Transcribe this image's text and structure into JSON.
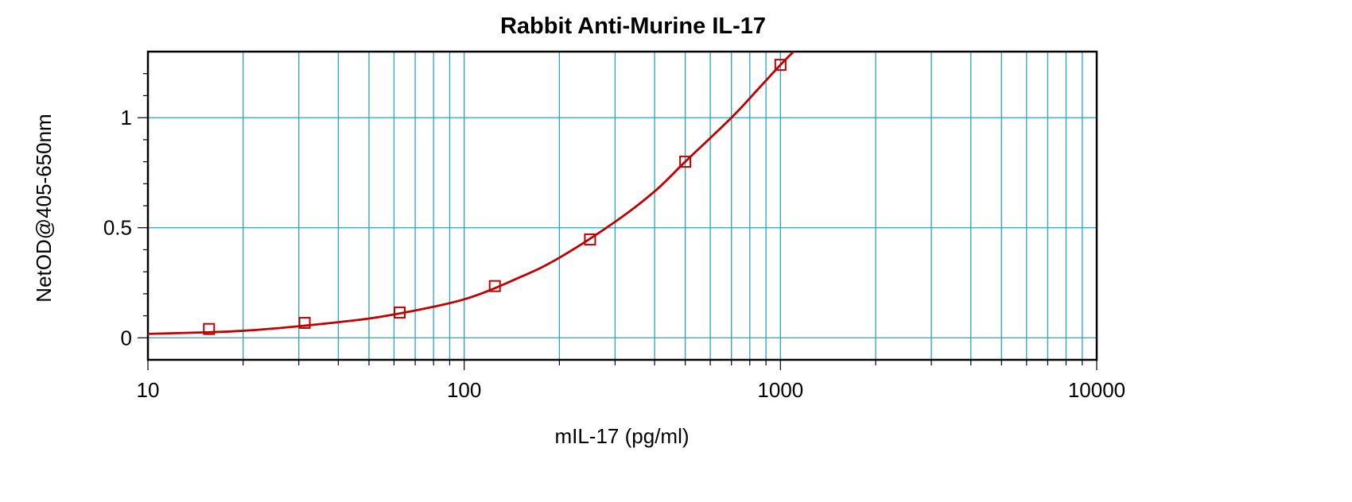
{
  "chart_data": {
    "type": "line",
    "title": "Rabbit Anti-Murine IL-17",
    "xlabel": "mIL-17 (pg/ml)",
    "ylabel": "NetOD@405-650nm",
    "x_scale": "log",
    "xlim": [
      10,
      10000
    ],
    "ylim": [
      -0.1,
      1.3
    ],
    "x_ticks": [
      10,
      100,
      1000,
      10000
    ],
    "x_tick_labels": [
      "10",
      "100",
      "1000",
      "10000"
    ],
    "y_ticks": [
      0,
      0.5,
      1
    ],
    "y_tick_labels": [
      "0",
      "0.5",
      "1"
    ],
    "grid": true,
    "marker": "square",
    "colors": {
      "series": "#c00000",
      "grid": "#29a3c4",
      "axis": "#000000"
    },
    "series": [
      {
        "points": [
          {
            "x": 15.6,
            "y": 0.04
          },
          {
            "x": 31.3,
            "y": 0.068
          },
          {
            "x": 62.5,
            "y": 0.115
          },
          {
            "x": 125,
            "y": 0.235
          },
          {
            "x": 250,
            "y": 0.447
          },
          {
            "x": 500,
            "y": 0.8
          },
          {
            "x": 1000,
            "y": 1.24
          }
        ],
        "fit_curve": [
          {
            "x": 10,
            "y": 0.018
          },
          {
            "x": 20,
            "y": 0.032
          },
          {
            "x": 40,
            "y": 0.071
          },
          {
            "x": 60,
            "y": 0.106
          },
          {
            "x": 100,
            "y": 0.175
          },
          {
            "x": 150,
            "y": 0.275
          },
          {
            "x": 200,
            "y": 0.364
          },
          {
            "x": 300,
            "y": 0.527
          },
          {
            "x": 400,
            "y": 0.665
          },
          {
            "x": 500,
            "y": 0.8
          },
          {
            "x": 700,
            "y": 1.0
          },
          {
            "x": 850,
            "y": 1.13
          },
          {
            "x": 1000,
            "y": 1.24
          },
          {
            "x": 1100,
            "y": 1.3
          }
        ]
      }
    ]
  }
}
